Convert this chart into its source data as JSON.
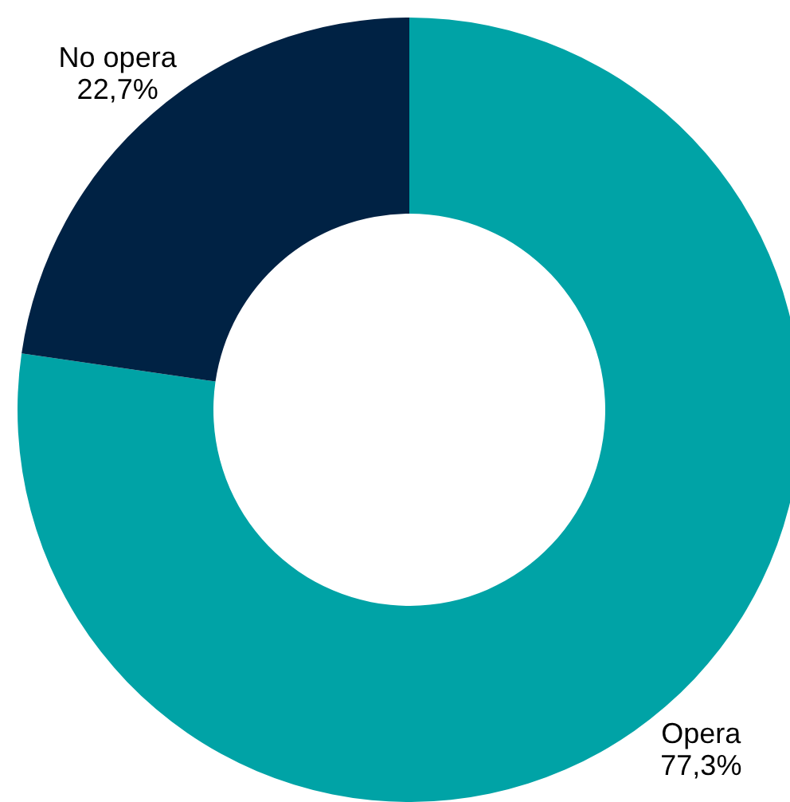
{
  "chart_data": {
    "type": "donut",
    "categories": [
      "Opera",
      "No opera"
    ],
    "values": [
      77.3,
      22.7
    ],
    "colors": [
      "#00a3a6",
      "#002244"
    ],
    "value_labels": [
      "77,3%",
      "22,7%"
    ]
  }
}
